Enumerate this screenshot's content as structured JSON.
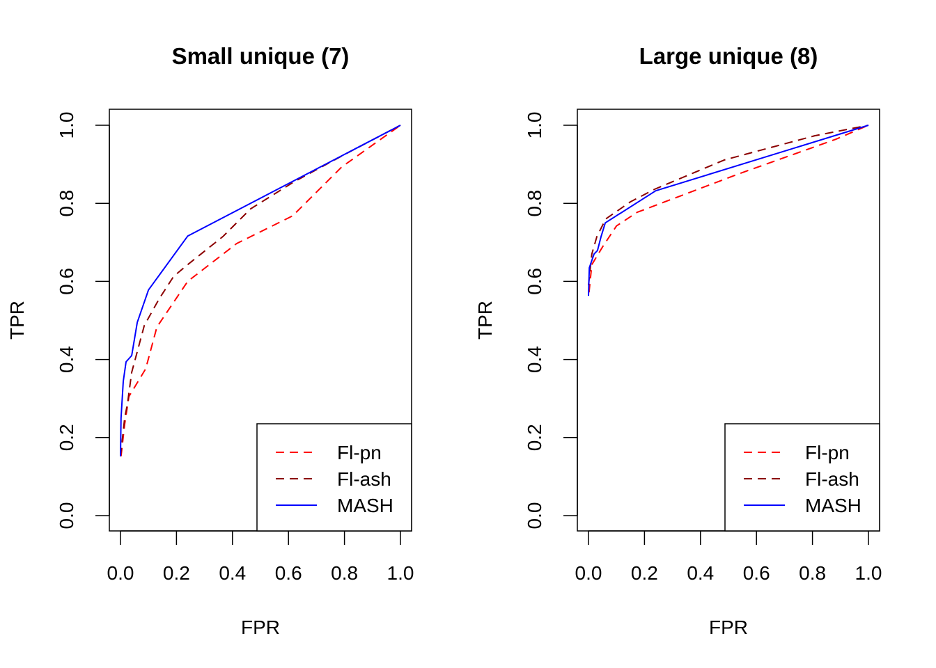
{
  "chart_data": [
    {
      "type": "line",
      "title": "Small unique (7)",
      "xlabel": "FPR",
      "ylabel": "TPR",
      "xlim": [
        0,
        1
      ],
      "ylim": [
        0,
        1
      ],
      "xticks": [
        "0.0",
        "0.2",
        "0.4",
        "0.6",
        "0.8",
        "1.0"
      ],
      "yticks": [
        "0.0",
        "0.2",
        "0.4",
        "0.6",
        "0.8",
        "1.0"
      ],
      "grid": false,
      "legend_position": "bottom-right",
      "series": [
        {
          "name": "Fl-pn",
          "color": "#ff0000",
          "style": "dashed",
          "x": [
            0.002,
            0.015,
            0.03,
            0.09,
            0.13,
            0.24,
            0.415,
            0.615,
            0.79,
            1.0
          ],
          "y": [
            0.152,
            0.234,
            0.305,
            0.376,
            0.483,
            0.6,
            0.697,
            0.768,
            0.893,
            1.0
          ]
        },
        {
          "name": "Fl-ash",
          "color": "#8b0000",
          "style": "dashed",
          "x": [
            0.0,
            0.015,
            0.025,
            0.04,
            0.085,
            0.137,
            0.19,
            0.24,
            0.366,
            0.465,
            0.62,
            0.8,
            1.0
          ],
          "y": [
            0.152,
            0.25,
            0.287,
            0.367,
            0.487,
            0.554,
            0.613,
            0.643,
            0.715,
            0.786,
            0.855,
            0.925,
            1.0
          ]
        },
        {
          "name": "MASH",
          "color": "#0000ff",
          "style": "solid",
          "x": [
            0.0,
            0.002,
            0.01,
            0.02,
            0.04,
            0.06,
            0.1,
            0.24,
            1.0
          ],
          "y": [
            0.152,
            0.25,
            0.344,
            0.394,
            0.41,
            0.495,
            0.578,
            0.716,
            1.0
          ]
        }
      ]
    },
    {
      "type": "line",
      "title": "Large unique (8)",
      "xlabel": "FPR",
      "ylabel": "TPR",
      "xlim": [
        0,
        1
      ],
      "ylim": [
        0,
        1
      ],
      "xticks": [
        "0.0",
        "0.2",
        "0.4",
        "0.6",
        "0.8",
        "1.0"
      ],
      "yticks": [
        "0.0",
        "0.2",
        "0.4",
        "0.6",
        "0.8",
        "1.0"
      ],
      "grid": false,
      "legend_position": "bottom-right",
      "series": [
        {
          "name": "Fl-pn",
          "color": "#ff0000",
          "style": "dashed",
          "x": [
            0.002,
            0.012,
            0.05,
            0.1,
            0.174,
            0.535,
            0.883,
            1.0
          ],
          "y": [
            0.572,
            0.643,
            0.688,
            0.742,
            0.777,
            0.875,
            0.964,
            1.0
          ]
        },
        {
          "name": "Fl-ash",
          "color": "#8b0000",
          "style": "dashed",
          "x": [
            0.0,
            0.012,
            0.03,
            0.062,
            0.15,
            0.236,
            0.485,
            0.808,
            1.0
          ],
          "y": [
            0.59,
            0.67,
            0.715,
            0.76,
            0.804,
            0.836,
            0.911,
            0.973,
            1.0
          ]
        },
        {
          "name": "MASH",
          "color": "#0000ff",
          "style": "solid",
          "x": [
            0.0,
            0.003,
            0.02,
            0.032,
            0.045,
            0.06,
            0.24,
            1.0
          ],
          "y": [
            0.563,
            0.635,
            0.67,
            0.679,
            0.715,
            0.75,
            0.832,
            1.0
          ]
        }
      ]
    }
  ]
}
